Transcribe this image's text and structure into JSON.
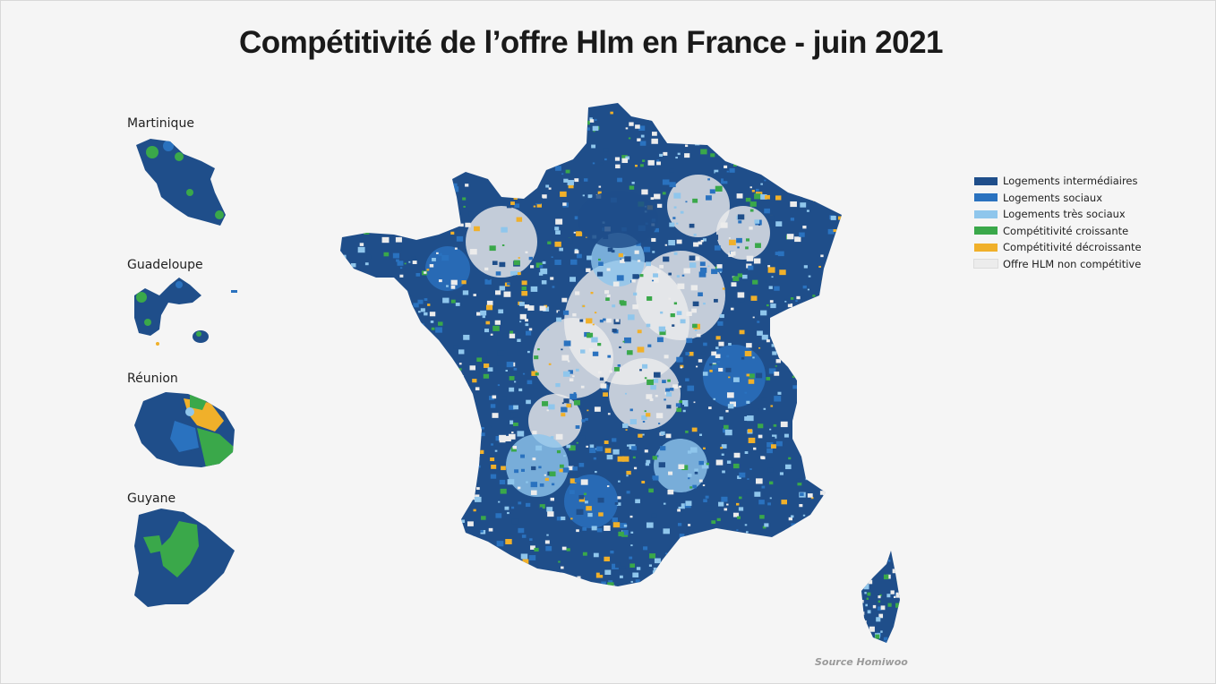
{
  "title": "Compétitivité de l’offre Hlm en France - juin 2021",
  "overseas": [
    {
      "label": "Martinique"
    },
    {
      "label": "Guadeloupe"
    },
    {
      "label": "Réunion"
    },
    {
      "label": "Guyane"
    }
  ],
  "legend": [
    {
      "label": "Logements intermédiaires",
      "color": "#1f4e8a"
    },
    {
      "label": "Logements sociaux",
      "color": "#2a72bf"
    },
    {
      "label": "Logements très sociaux",
      "color": "#8fc6ec"
    },
    {
      "label": "Compétitivité croissante",
      "color": "#3aa84a"
    },
    {
      "label": "Compétitivité décroissante",
      "color": "#f0b02a"
    },
    {
      "label": "Offre HLM non compétitive",
      "color": "#ececec"
    }
  ],
  "source": "Source Homiwoo"
}
